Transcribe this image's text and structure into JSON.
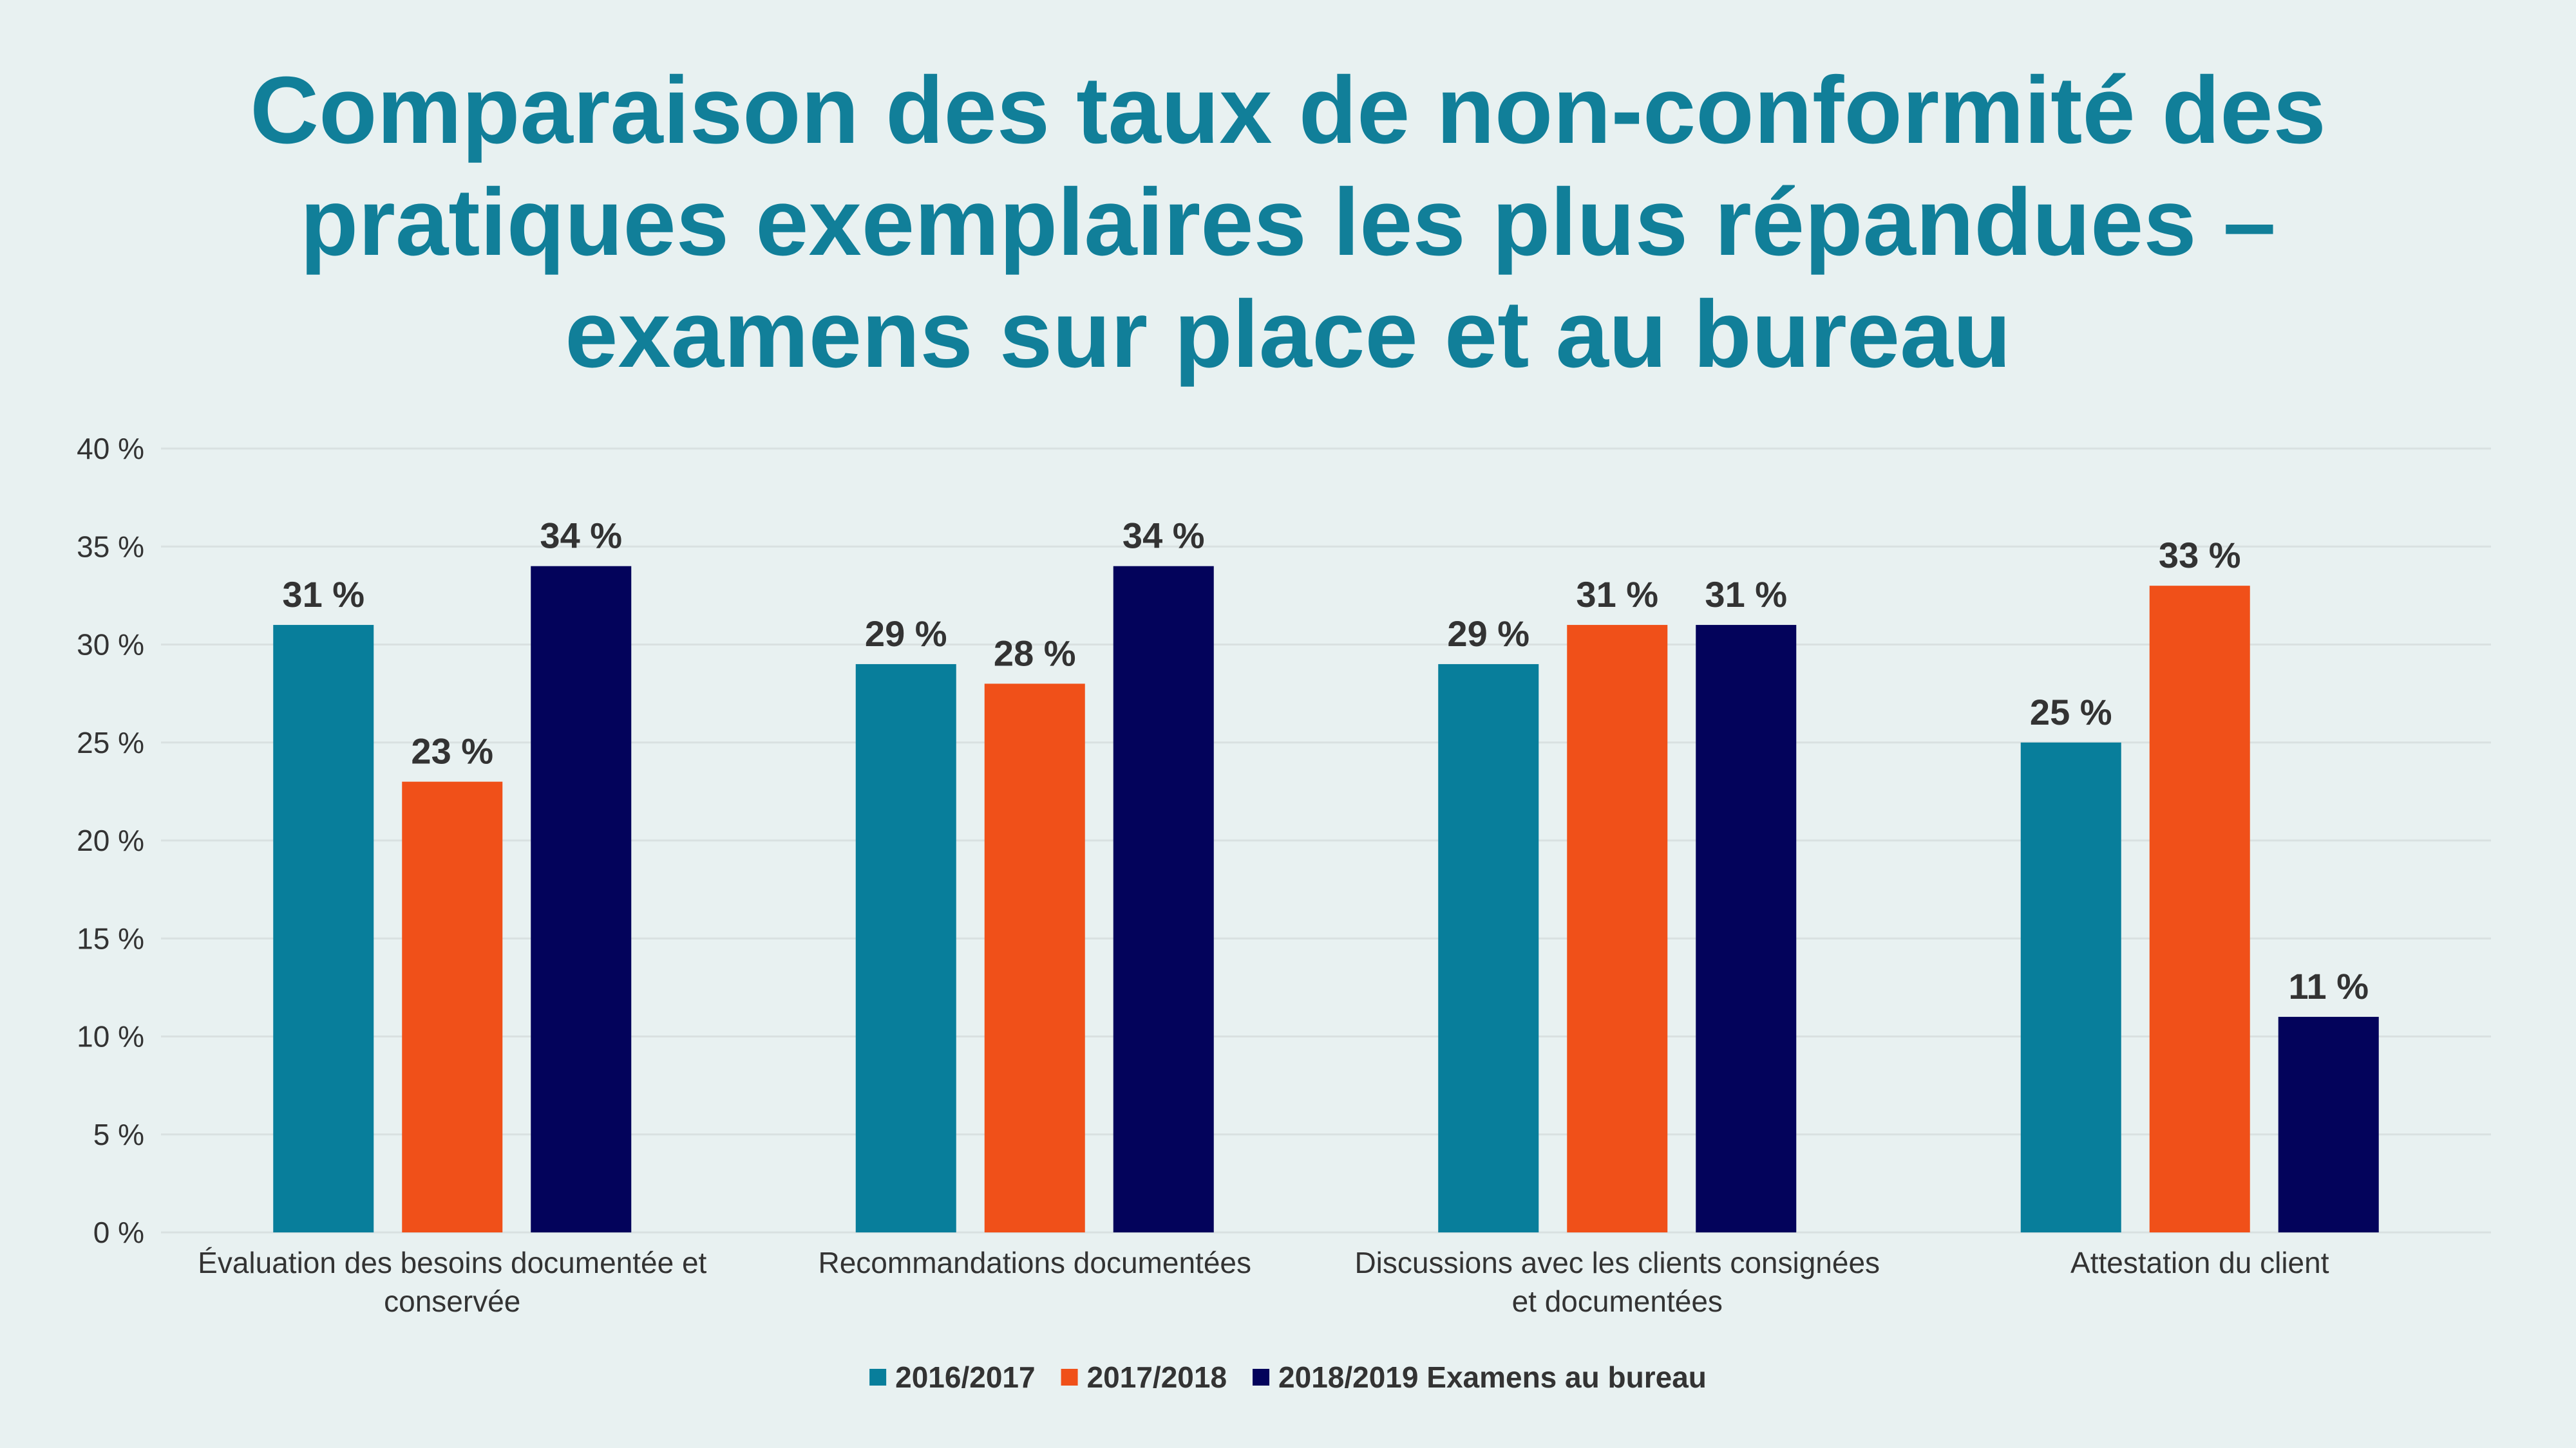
{
  "title_lines": [
    "Comparaison des taux de non-conformité des",
    "pratiques exemplaires les plus répandues –",
    "examens sur place et au bureau"
  ],
  "chart_data": {
    "type": "bar",
    "title": "Comparaison des taux de non-conformité des pratiques exemplaires les plus répandues – examens sur place et au bureau",
    "categories": [
      [
        "Évaluation des besoins documentée et",
        "conservée"
      ],
      [
        "Recommandations documentées"
      ],
      [
        "Discussions avec les clients consignées",
        "et documentées"
      ],
      [
        "Attestation du client"
      ]
    ],
    "series": [
      {
        "name": "2016/2017",
        "color": "#087e9b",
        "values": [
          31,
          29,
          29,
          25
        ]
      },
      {
        "name": "2017/2018",
        "color": "#f05019",
        "values": [
          23,
          28,
          31,
          33
        ]
      },
      {
        "name": "2018/2019 Examens au bureau",
        "color": "#03035b",
        "values": [
          34,
          34,
          31,
          11
        ]
      }
    ],
    "value_suffix": " %",
    "ylim": [
      0,
      40
    ],
    "yticks": [
      0,
      5,
      10,
      15,
      20,
      25,
      30,
      35,
      40
    ],
    "ytick_labels": [
      "0 %",
      "5 %",
      "10 %",
      "15 %",
      "20 %",
      "25 %",
      "30 %",
      "35 %",
      "40 %"
    ],
    "grid": true,
    "grid_color": "#d9e1e1",
    "legend_position": "bottom",
    "xlabel": "",
    "ylabel": ""
  }
}
